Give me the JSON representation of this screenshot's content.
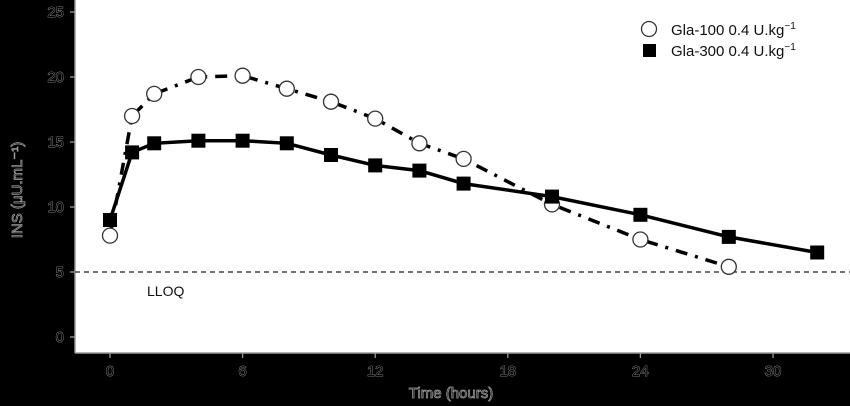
{
  "chart_data": {
    "type": "line",
    "title": "",
    "xlabel": "Time (hours)",
    "ylabel": "INS (μU.mL⁻¹)",
    "xlim": [
      0,
      33
    ],
    "ylim": [
      0,
      25
    ],
    "xticks": [
      0,
      6,
      12,
      18,
      24,
      30
    ],
    "yticks": [
      0,
      5,
      10,
      15,
      20,
      25
    ],
    "grid": false,
    "legend_position": "top-right",
    "series": [
      {
        "name": "Gla-100 0.4 U.kg⁻¹",
        "label_base": "Gla-100 0.4 U.kg",
        "marker": "open-circle",
        "line_style": "dash-dot",
        "x": [
          0,
          1,
          2,
          4,
          6,
          8,
          10,
          12,
          14,
          16,
          20,
          24,
          28
        ],
        "values": [
          7.8,
          17.0,
          18.7,
          20.0,
          20.1,
          19.1,
          18.1,
          16.8,
          14.9,
          13.7,
          10.2,
          7.5,
          5.4
        ]
      },
      {
        "name": "Gla-300 0.4 U.kg⁻¹",
        "label_base": "Gla-300 0.4 U.kg",
        "marker": "filled-square",
        "line_style": "solid",
        "x": [
          0,
          1,
          2,
          4,
          6,
          8,
          10,
          12,
          14,
          16,
          20,
          24,
          28,
          32
        ],
        "values": [
          9.0,
          14.2,
          14.9,
          15.1,
          15.1,
          14.9,
          14.0,
          13.2,
          12.8,
          11.8,
          10.8,
          9.4,
          7.7,
          6.5
        ]
      }
    ],
    "reference_lines": [
      {
        "y": 5,
        "style": "dashed",
        "label": "LLOQ"
      }
    ]
  },
  "legend": {
    "items": [
      {
        "label": "Gla-100 0.4 U.kg",
        "sup": "−1"
      },
      {
        "label": "Gla-300 0.4 U.kg",
        "sup": "−1"
      }
    ]
  },
  "axes": {
    "x_title": "Time (hours)",
    "y_title": "INS (μU.mL⁻¹)"
  },
  "annotations": {
    "lloq": "LLOQ"
  }
}
